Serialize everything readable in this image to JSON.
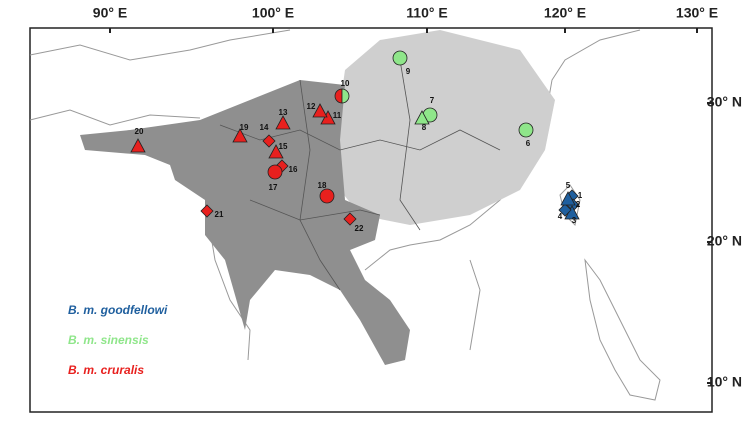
{
  "lon_labels": [
    "90° E",
    "100° E",
    "110° E",
    "120° E",
    "130° E"
  ],
  "lat_labels": [
    "30° N",
    "20° N",
    "10° N"
  ],
  "legend": [
    {
      "name": "B. m. goodfellowi",
      "color": "#1f5f9e",
      "sites": [
        "1",
        "2",
        "3",
        "4",
        "5"
      ]
    },
    {
      "name": "B. m. sinensis",
      "color": "#8fe68a",
      "sites": [
        "6",
        "7",
        "8",
        "9",
        "10"
      ]
    },
    {
      "name": "B. m. cruralis",
      "color": "#e8201e",
      "sites": [
        "11",
        "12",
        "13",
        "14",
        "15",
        "16",
        "17",
        "18",
        "19",
        "20",
        "21",
        "22"
      ]
    }
  ]
}
